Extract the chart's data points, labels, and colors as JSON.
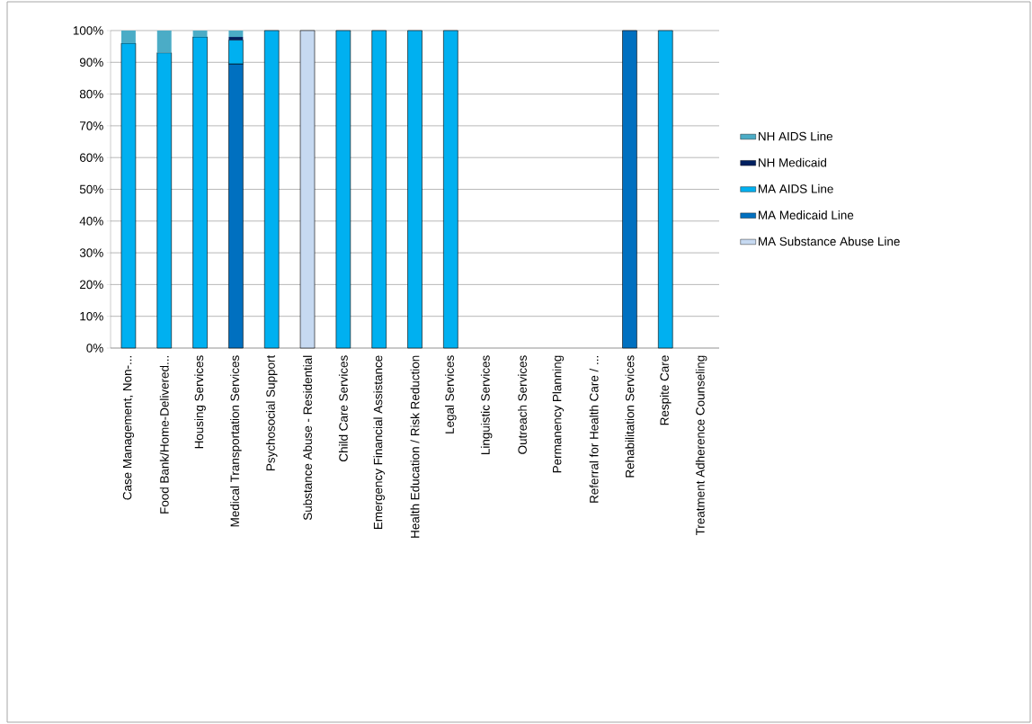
{
  "chart_data": {
    "type": "bar",
    "stacked": true,
    "categories": [
      "Case Management, Non-...",
      "Food Bank/Home-Delivered...",
      "Housing Services",
      "Medical Transportation Services",
      "Psychosocial Support",
      "Substance Abuse - Residential",
      "Child Care Services",
      "Emergency Financial Assistance",
      "Health Education / Risk Reduction",
      "Legal Services",
      "Linguistic Services",
      "Outreach Services",
      "Permanency Planning",
      "Referral for Health Care / ...",
      "Rehabilitation Services",
      "Respite Care",
      "Treatment Adherence Counseling"
    ],
    "series": [
      {
        "name": "MA Substance Abuse Line",
        "color": "#c6d9f1",
        "values": [
          null,
          null,
          null,
          null,
          null,
          100,
          null,
          null,
          null,
          null,
          null,
          null,
          null,
          null,
          null,
          null,
          null
        ]
      },
      {
        "name": "MA Medicaid Line",
        "color": "#0070c0",
        "values": [
          null,
          null,
          null,
          89.5,
          null,
          null,
          null,
          null,
          null,
          null,
          null,
          null,
          null,
          null,
          100,
          null,
          null
        ]
      },
      {
        "name": "MA AIDS Line",
        "color": "#00b0f0",
        "values": [
          96,
          93,
          98,
          7.5,
          100,
          null,
          100,
          100,
          100,
          100,
          null,
          null,
          null,
          null,
          null,
          100,
          null
        ]
      },
      {
        "name": "NH Medicaid",
        "color": "#002060",
        "values": [
          null,
          null,
          null,
          1,
          null,
          null,
          null,
          null,
          null,
          null,
          null,
          null,
          null,
          null,
          null,
          null,
          null
        ]
      },
      {
        "name": "NH AIDS Line",
        "color": "#4bacc6",
        "values": [
          4,
          7,
          2,
          2,
          null,
          null,
          null,
          null,
          null,
          null,
          null,
          null,
          null,
          null,
          null,
          null,
          null
        ]
      }
    ],
    "ylim": [
      0,
      100
    ],
    "yticks": [
      {
        "value": 0,
        "label": "0%"
      },
      {
        "value": 10,
        "label": "10%"
      },
      {
        "value": 20,
        "label": "20%"
      },
      {
        "value": 30,
        "label": "30%"
      },
      {
        "value": 40,
        "label": "40%"
      },
      {
        "value": 50,
        "label": "50%"
      },
      {
        "value": 60,
        "label": "60%"
      },
      {
        "value": 70,
        "label": "70%"
      },
      {
        "value": 80,
        "label": "80%"
      },
      {
        "value": 90,
        "label": "90%"
      },
      {
        "value": 100,
        "label": "100%"
      }
    ],
    "grid": "y",
    "legend": "right"
  }
}
